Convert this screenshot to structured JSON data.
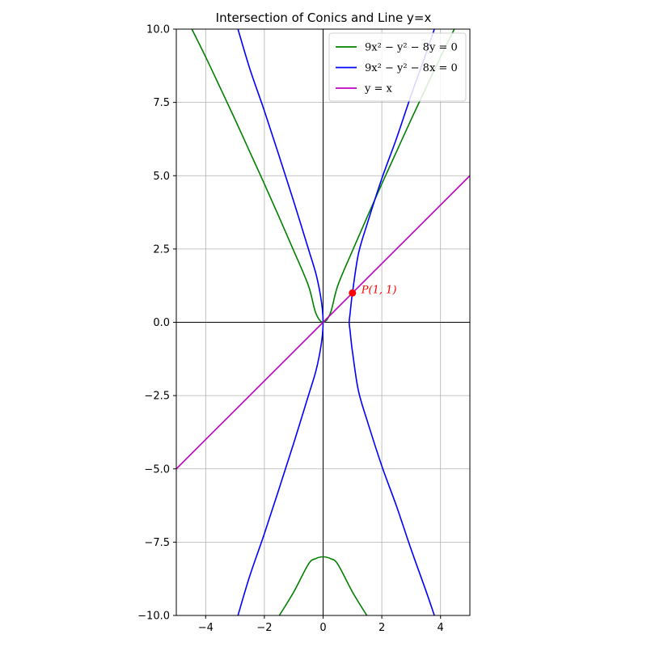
{
  "chart_data": {
    "type": "line",
    "title": "Intersection of Conics and Line y=x",
    "xlabel": "",
    "ylabel": "",
    "xlim": [
      -5,
      5
    ],
    "ylim": [
      -10,
      10
    ],
    "x_ticks": [
      -4,
      -2,
      0,
      2,
      4
    ],
    "x_tick_labels": [
      "−4",
      "−2",
      "0",
      "2",
      "4"
    ],
    "y_ticks": [
      -10,
      -7.5,
      -5,
      -2.5,
      0,
      2.5,
      5,
      7.5,
      10
    ],
    "y_tick_labels": [
      "−10.0",
      "−7.5",
      "−5.0",
      "−2.5",
      "0.0",
      "2.5",
      "5.0",
      "7.5",
      "10.0"
    ],
    "grid": true,
    "legend_position": "top-right",
    "series": [
      {
        "name": "9x² − y² − 8y = 0",
        "color": "#008000",
        "branches": [
          [
            [
              -4.47,
              10
            ],
            [
              -4,
              9.05
            ],
            [
              -3.5,
              7.99
            ],
            [
              -3,
              6.92
            ],
            [
              -2.5,
              5.82
            ],
            [
              -2,
              4.72
            ],
            [
              -1.5,
              3.59
            ],
            [
              -1,
              2.44
            ],
            [
              -0.5,
              1.25
            ],
            [
              -0.25,
              0.32
            ],
            [
              0,
              0
            ],
            [
              0.25,
              0.32
            ],
            [
              0.5,
              1.25
            ],
            [
              1,
              2.44
            ],
            [
              1.5,
              3.59
            ],
            [
              2,
              4.72
            ],
            [
              2.5,
              5.82
            ],
            [
              3,
              6.92
            ],
            [
              3.5,
              7.99
            ],
            [
              4,
              9.05
            ],
            [
              4.47,
              10
            ]
          ],
          [
            [
              -1.49,
              -10
            ],
            [
              -1,
              -9.2
            ],
            [
              -0.5,
              -8.25
            ],
            [
              -0.25,
              -8.06
            ],
            [
              0,
              -8
            ],
            [
              0.25,
              -8.06
            ],
            [
              0.5,
              -8.25
            ],
            [
              1,
              -9.2
            ],
            [
              1.49,
              -10
            ]
          ]
        ]
      },
      {
        "name": "9x² − y² − 8x = 0",
        "color": "#0000ff",
        "branches": [
          [
            [
              -2.9,
              10
            ],
            [
              -2.5,
              8.66
            ],
            [
              -2,
              7.21
            ],
            [
              -1.5,
              5.68
            ],
            [
              -1,
              4.12
            ],
            [
              -0.5,
              2.5
            ],
            [
              -0.25,
              1.68
            ],
            [
              -0.1,
              0.98
            ],
            [
              -0.02,
              0.41
            ],
            [
              0,
              0
            ],
            [
              -0.02,
              -0.41
            ],
            [
              -0.1,
              -0.98
            ],
            [
              -0.25,
              -1.68
            ],
            [
              -0.5,
              -2.5
            ],
            [
              -1,
              -4.12
            ],
            [
              -1.5,
              -5.68
            ],
            [
              -2,
              -7.21
            ],
            [
              -2.5,
              -8.66
            ],
            [
              -2.9,
              -10
            ]
          ],
          [
            [
              3.79,
              10
            ],
            [
              3.5,
              9.15
            ],
            [
              3,
              7.75
            ],
            [
              2.5,
              6.27
            ],
            [
              2,
              4.9
            ],
            [
              1.5,
              3.35
            ],
            [
              1.2,
              2.32
            ],
            [
              1,
              1
            ],
            [
              0.95,
              0.59
            ],
            [
              0.92,
              0.3
            ],
            [
              0.889,
              0
            ],
            [
              0.92,
              -0.3
            ],
            [
              0.95,
              -0.59
            ],
            [
              1,
              -1
            ],
            [
              1.2,
              -2.32
            ],
            [
              1.5,
              -3.35
            ],
            [
              2,
              -4.9
            ],
            [
              2.5,
              -6.27
            ],
            [
              3,
              -7.75
            ],
            [
              3.5,
              -9.15
            ],
            [
              3.79,
              -10
            ]
          ]
        ]
      },
      {
        "name": "y = x",
        "color": "#bf00bf",
        "branches": [
          [
            [
              -5,
              -5
            ],
            [
              5,
              5
            ]
          ]
        ]
      }
    ],
    "points": [
      {
        "label": "P(1, 1)",
        "x": 1,
        "y": 1,
        "color": "#ff0000"
      }
    ]
  }
}
